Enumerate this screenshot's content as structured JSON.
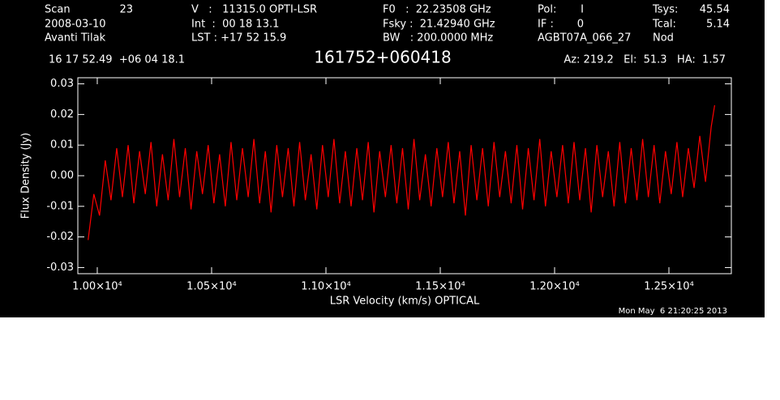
{
  "chart_data": {
    "type": "line",
    "header": [
      "Scan",
      "23",
      "V   :   11315.0 OPTI-LSR",
      "F0   :  22.23508 GHz",
      "Pol:",
      "I",
      "Tsys:",
      "45.54",
      "2008-03-10",
      "Int  :  00 18 13.1",
      "Fsky :  21.42940 GHz",
      "IF :",
      "0",
      "Tcal:",
      "5.14",
      "Avanti Tilak",
      "LST : +17 52 15.9",
      "BW   : 200.0000 MHz",
      "AGBT07A_066_27",
      "Nod",
      "16 17 52.49  +06 04 18.1",
      "Az: 219.2   El:  51.3   HA:  1.57"
    ],
    "title": "161752+060418",
    "timestamp": "Mon May  6 21:20:25 2013",
    "xlabel": "LSR Velocity (km/s) OPTICAL",
    "ylabel": "Flux Density (Jy)",
    "color": "#ff0000",
    "xlim": [
      9915,
      12773
    ],
    "ylim": [
      -0.032,
      0.032
    ],
    "xticks": [
      {
        "value": 10000,
        "label": "1.00×10⁴"
      },
      {
        "value": 10500,
        "label": "1.05×10⁴"
      },
      {
        "value": 11000,
        "label": "1.10×10⁴"
      },
      {
        "value": 11500,
        "label": "1.15×10⁴"
      },
      {
        "value": 12000,
        "label": "1.20×10⁴"
      },
      {
        "value": 12500,
        "label": "1.25×10⁴"
      }
    ],
    "yticks": [
      -0.03,
      -0.02,
      -0.01,
      {
        "value": 0,
        "label": "0.00"
      },
      0.01,
      0.02,
      0.03
    ],
    "x": [
      9960,
      9985,
      10010,
      10035,
      10060,
      10085,
      10110,
      10135,
      10160,
      10185,
      10210,
      10235,
      10260,
      10285,
      10310,
      10335,
      10360,
      10385,
      10410,
      10435,
      10460,
      10485,
      10510,
      10535,
      10560,
      10585,
      10610,
      10635,
      10660,
      10685,
      10710,
      10735,
      10760,
      10785,
      10810,
      10835,
      10860,
      10885,
      10910,
      10935,
      10960,
      10985,
      11010,
      11035,
      11060,
      11085,
      11110,
      11135,
      11160,
      11185,
      11210,
      11235,
      11260,
      11285,
      11310,
      11335,
      11360,
      11385,
      11410,
      11435,
      11460,
      11485,
      11510,
      11535,
      11560,
      11585,
      11610,
      11635,
      11660,
      11685,
      11710,
      11735,
      11760,
      11785,
      11810,
      11835,
      11860,
      11885,
      11910,
      11935,
      11960,
      11985,
      12010,
      12035,
      12060,
      12085,
      12110,
      12135,
      12160,
      12185,
      12210,
      12235,
      12260,
      12285,
      12310,
      12335,
      12360,
      12385,
      12410,
      12435,
      12460,
      12485,
      12510,
      12535,
      12560,
      12585,
      12610,
      12635,
      12660,
      12685,
      12700
    ],
    "values": [
      -0.021,
      -0.006,
      -0.013,
      0.005,
      -0.008,
      0.009,
      -0.007,
      0.01,
      -0.009,
      0.008,
      -0.006,
      0.011,
      -0.01,
      0.007,
      -0.008,
      0.012,
      -0.007,
      0.009,
      -0.011,
      0.008,
      -0.006,
      0.01,
      -0.009,
      0.007,
      -0.01,
      0.011,
      -0.008,
      0.009,
      -0.007,
      0.012,
      -0.009,
      0.008,
      -0.012,
      0.01,
      -0.007,
      0.009,
      -0.01,
      0.011,
      -0.008,
      0.007,
      -0.011,
      0.01,
      -0.007,
      0.012,
      -0.009,
      0.008,
      -0.01,
      0.009,
      -0.008,
      0.011,
      -0.012,
      0.008,
      -0.007,
      0.01,
      -0.009,
      0.009,
      -0.011,
      0.012,
      -0.008,
      0.007,
      -0.01,
      0.009,
      -0.007,
      0.011,
      -0.009,
      0.008,
      -0.013,
      0.01,
      -0.008,
      0.009,
      -0.01,
      0.011,
      -0.007,
      0.008,
      -0.009,
      0.01,
      -0.011,
      0.009,
      -0.008,
      0.012,
      -0.01,
      0.008,
      -0.007,
      0.01,
      -0.009,
      0.011,
      -0.008,
      0.009,
      -0.012,
      0.01,
      -0.007,
      0.008,
      -0.01,
      0.011,
      -0.009,
      0.009,
      -0.008,
      0.012,
      -0.007,
      0.01,
      -0.009,
      0.008,
      -0.006,
      0.011,
      -0.007,
      0.009,
      -0.004,
      0.013,
      -0.002,
      0.016,
      0.023
    ]
  }
}
